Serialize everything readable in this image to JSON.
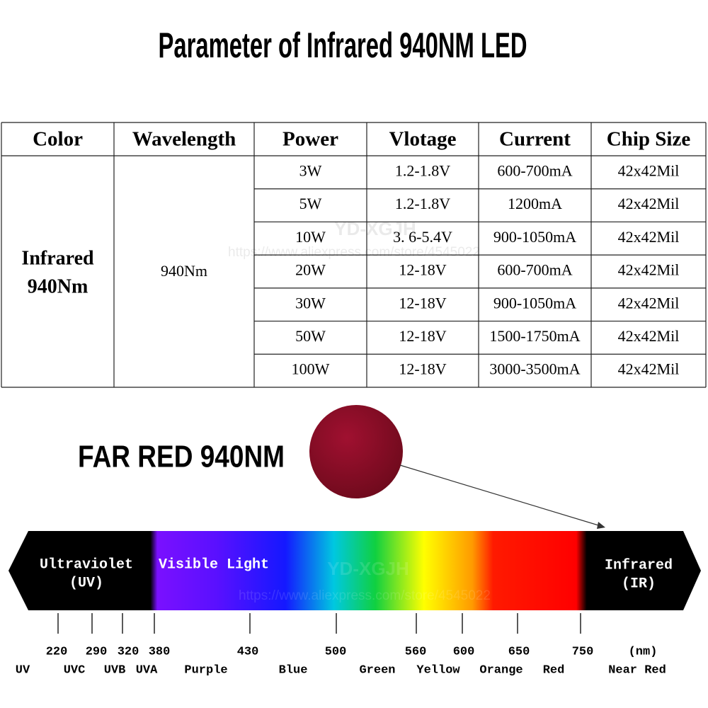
{
  "title": "Parameter of Infrared 940NM LED",
  "table": {
    "headers": [
      "Color",
      "Wavelength",
      "Power",
      "Vlotage",
      "Current",
      "Chip Size"
    ],
    "color_cell": [
      "Infrared",
      "940Nm"
    ],
    "wavelength": "940Nm",
    "rows": [
      [
        "3W",
        "1.2-1.8V",
        "600-700mA",
        "42x42Mil"
      ],
      [
        "5W",
        "1.2-1.8V",
        "1200mA",
        "42x42Mil"
      ],
      [
        "10W",
        "3. 6-5.4V",
        "900-1050mA",
        "42x42Mil"
      ],
      [
        "20W",
        "12-18V",
        "600-700mA",
        "42x42Mil"
      ],
      [
        "30W",
        "12-18V",
        "900-1050mA",
        "42x42Mil"
      ],
      [
        "50W",
        "12-18V",
        "1500-1750mA",
        "42x42Mil"
      ],
      [
        "100W",
        "12-18V",
        "3000-3500mA",
        "42x42Mil"
      ]
    ]
  },
  "watermark": {
    "brand": "YD-XGJH",
    "url": "https://www.aliexpress.com/store/4545022"
  },
  "far_red_label": "FAR RED 940NM",
  "spectrum": {
    "left_label": [
      "Ultraviolet",
      "(UV)"
    ],
    "visible_label": "Visible Light",
    "right_label": [
      "Infrared",
      "(IR)"
    ],
    "ticks": [
      220,
      290,
      320,
      380,
      430,
      500,
      560,
      600,
      650,
      750
    ],
    "unit": "(nm)",
    "bands": [
      "UV",
      "UVC",
      "UVB",
      "UVA",
      "Purple",
      "Blue",
      "Green",
      "Yellow",
      "Orange",
      "Red",
      "Near Red"
    ]
  }
}
